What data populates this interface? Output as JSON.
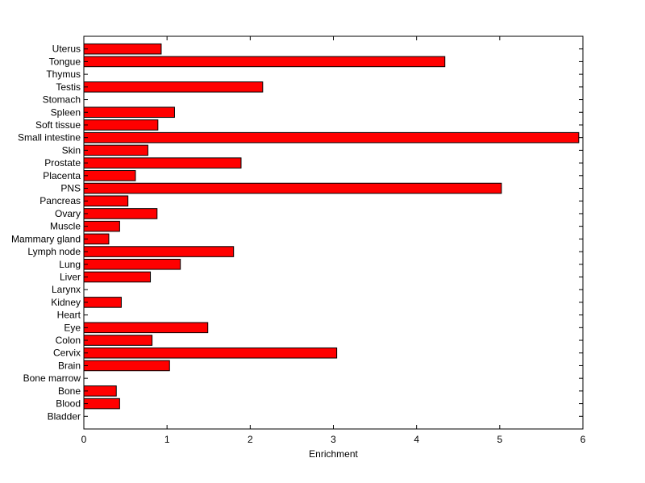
{
  "chart_data": {
    "type": "bar",
    "orientation": "horizontal",
    "categories": [
      "Uterus",
      "Tongue",
      "Thymus",
      "Testis",
      "Stomach",
      "Spleen",
      "Soft tissue",
      "Small intestine",
      "Skin",
      "Prostate",
      "Placenta",
      "PNS",
      "Pancreas",
      "Ovary",
      "Muscle",
      "Mammary gland",
      "Lymph node",
      "Lung",
      "Liver",
      "Larynx",
      "Kidney",
      "Heart",
      "Eye",
      "Colon",
      "Cervix",
      "Brain",
      "Bone marrow",
      "Bone",
      "Blood",
      "Bladder"
    ],
    "values": [
      0.93,
      4.34,
      0,
      2.15,
      0,
      1.09,
      0.89,
      5.95,
      0.77,
      1.89,
      0.62,
      5.02,
      0.53,
      0.88,
      0.43,
      0.3,
      1.8,
      1.16,
      0.8,
      0,
      0.45,
      0,
      1.49,
      0.82,
      3.04,
      1.03,
      0,
      0.39,
      0.43,
      0
    ],
    "xlabel": "Enrichment",
    "ylabel": "",
    "xlim": [
      0,
      6
    ],
    "xticks": [
      "0",
      "1",
      "2",
      "3",
      "4",
      "5",
      "6"
    ],
    "grid": false,
    "bar_color": "#ff0000"
  }
}
